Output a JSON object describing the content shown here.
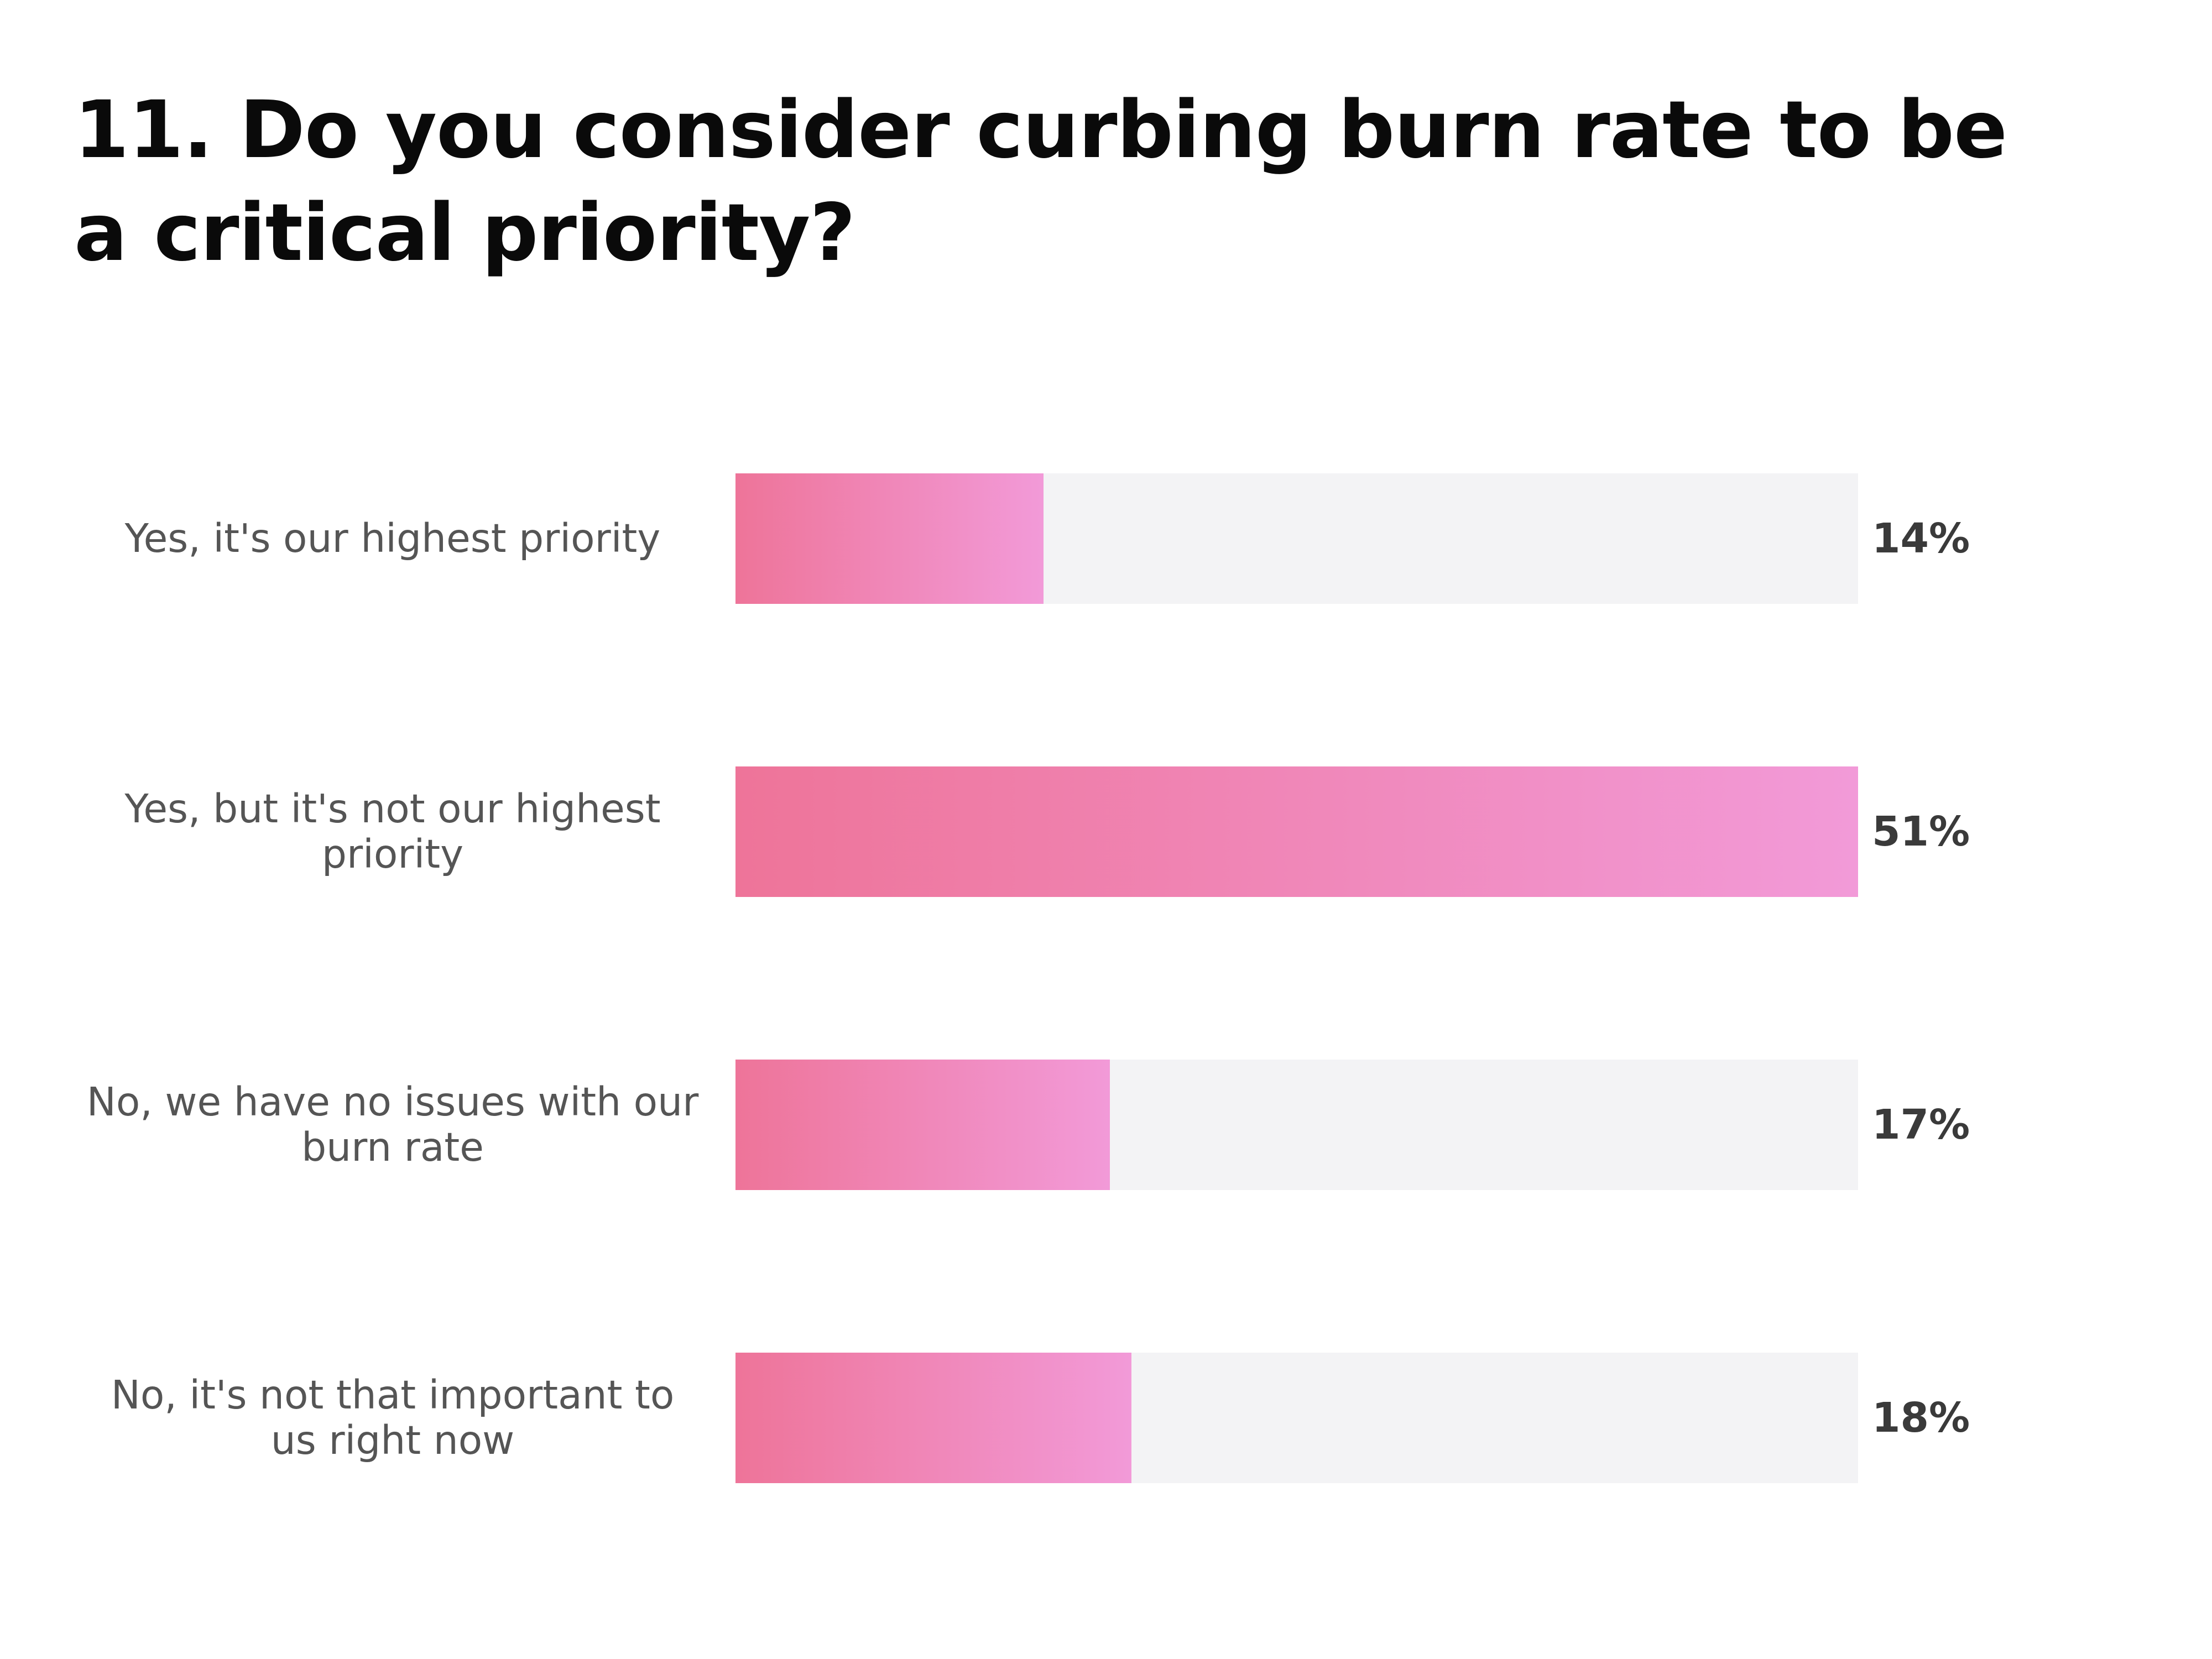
{
  "chart_data": {
    "type": "bar",
    "orientation": "horizontal",
    "title": "11. Do you consider curbing burn rate to be a critical priority?",
    "categories": [
      "Yes, it's our highest priority",
      "Yes, but it's not our highest priority",
      "No, we have no issues with our burn rate",
      "No, it's not that important to us right now"
    ],
    "values": [
      14,
      51,
      17,
      18
    ],
    "value_labels": [
      "14%",
      "51%",
      "17%",
      "18%"
    ],
    "xlim": [
      0,
      51
    ],
    "grid": false,
    "bar_color_start": "#ee7499",
    "bar_color_end": "#f29ad8",
    "track_color": "#f3f3f5"
  }
}
